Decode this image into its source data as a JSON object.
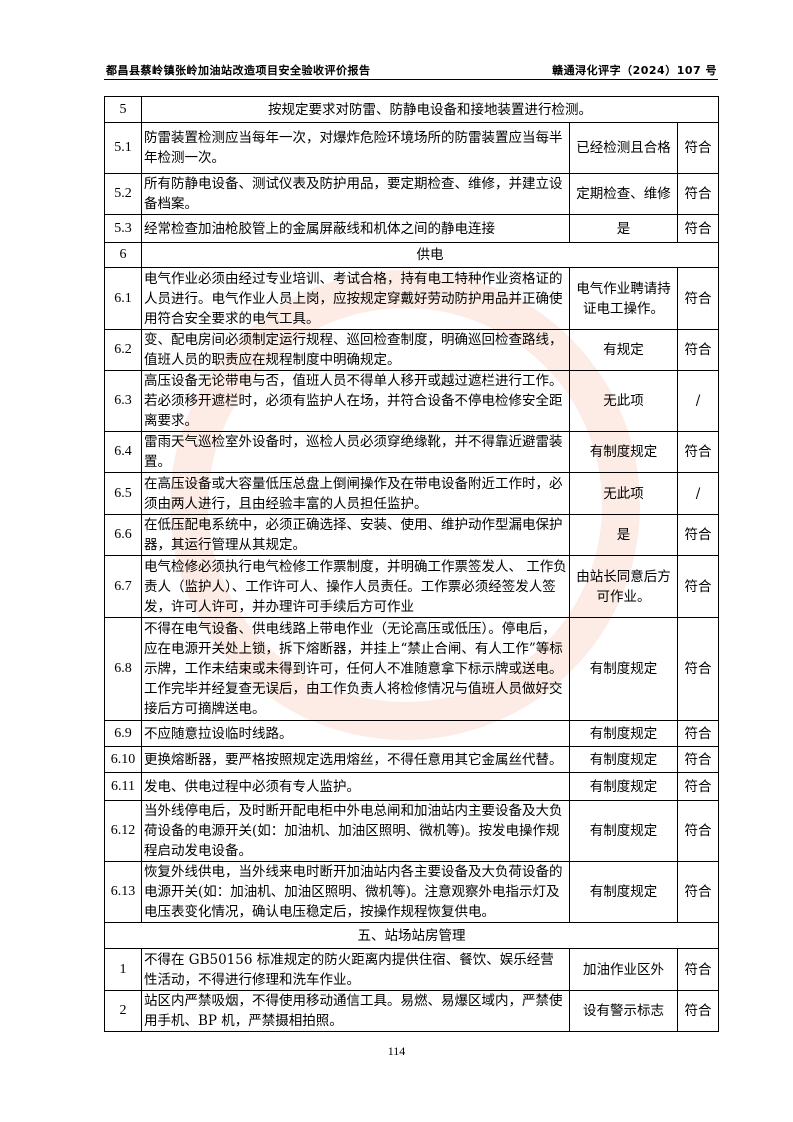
{
  "header": {
    "left": "都昌县蔡岭镇张岭加油站改造项目安全验收评价报告",
    "right": "赣通浔化评字（2024）107 号"
  },
  "rows": [
    {
      "type": "section",
      "num": "5",
      "text": "按规定要求对防雷、防静电设备和接地装置进行检测。"
    },
    {
      "num": "5.1",
      "content": "防雷装置检测应当每年一次，对爆炸危险环境场所的防雷装置应当每半年检测一次。",
      "result": "已经检测且合格",
      "conclusion": "符合"
    },
    {
      "num": "5.2",
      "content": "所有防静电设备、测试仪表及防护用品，要定期检查、维修，并建立设备档案。",
      "result": "定期检查、维修",
      "conclusion": "符合"
    },
    {
      "num": "5.3",
      "content": "经常检查加油枪胶管上的金属屏蔽线和机体之间的静电连接",
      "result": "是",
      "conclusion": "符合"
    },
    {
      "type": "section",
      "num": "6",
      "text": "供电"
    },
    {
      "num": "6.1",
      "content": "电气作业必须由经过专业培训、考试合格，持有电工特种作业资格证的人员进行。电气作业人员上岗，应按规定穿戴好劳动防护用品并正确使用符合安全要求的电气工具。",
      "result": "电气作业聘请持证电工操作。",
      "conclusion": "符合"
    },
    {
      "num": "6.2",
      "content": "变、配电房间必须制定运行规程、巡回检查制度，明确巡回检查路线，值班人员的职责应在规程制度中明确规定。",
      "result": "有规定",
      "conclusion": "符合"
    },
    {
      "num": "6.3",
      "content": "高压设备无论带电与否，值班人员不得单人移开或越过遮栏进行工作。若必须移开遮栏时，必须有监护人在场，并符合设备不停电检修安全距离要求。",
      "result": "无此项",
      "conclusion": "/"
    },
    {
      "num": "6.4",
      "content": "雷雨天气巡检室外设备时，巡检人员必须穿绝缘靴，并不得靠近避雷装置。",
      "result": "有制度规定",
      "conclusion": "符合"
    },
    {
      "num": "6.5",
      "content": "在高压设备或大容量低压总盘上倒闸操作及在带电设备附近工作时，必须由两人进行，且由经验丰富的人员担任监护。",
      "result": "无此项",
      "conclusion": "/"
    },
    {
      "num": "6.6",
      "content": "在低压配电系统中，必须正确选择、安装、使用、维护动作型漏电保护器，其运行管理从其规定。",
      "result": "是",
      "conclusion": "符合"
    },
    {
      "num": "6.7",
      "content": "电气检修必须执行电气检修工作票制度，并明确工作票签发人、 工作负责人（监护人）、工作许可人、操作人员责任。工作票必须经签发人签发，许可人许可，并办理许可手续后方可作业",
      "result": "由站长同意后方可作业。",
      "conclusion": "符合"
    },
    {
      "num": "6.8",
      "content": "不得在电气设备、供电线路上带电作业（无论高压或低压）。停电后，应在电源开关处上锁，拆下熔断器，并挂上“禁止合闸、有人工作”等标示牌，工作未结束或未得到许可，任何人不准随意拿下标示牌或送电。工作完毕并经复查无误后，由工作负责人将检修情况与值班人员做好交接后方可摘牌送电。",
      "result": "有制度规定",
      "conclusion": "符合"
    },
    {
      "num": "6.9",
      "content": "不应随意拉设临时线路。",
      "result": "有制度规定",
      "conclusion": "符合"
    },
    {
      "num": "6.10",
      "content": "更换熔断器，要严格按照规定选用熔丝，不得任意用其它金属丝代替。",
      "result": "有制度规定",
      "conclusion": "符合"
    },
    {
      "num": "6.11",
      "content": "发电、供电过程中必须有专人监护。",
      "result": "有制度规定",
      "conclusion": "符合"
    },
    {
      "num": "6.12",
      "content": "当外线停电后，及时断开配电柜中外电总闸和加油站内主要设备及大负荷设备的电源开关(如：加油机、加油区照明、微机等)。按发电操作规程启动发电设备。",
      "result": "有制度规定",
      "conclusion": "符合"
    },
    {
      "num": "6.13",
      "content": "恢复外线供电，当外线来电时断开加油站内各主要设备及大负荷设备的电源开关(如：加油机、加油区照明、微机等)。注意观察外电指示灯及电压表变化情况，确认电压稳定后，按操作规程恢复供电。",
      "result": "有制度规定",
      "conclusion": "符合"
    },
    {
      "type": "chapter",
      "text": "五、站场站房管理"
    },
    {
      "num": "1",
      "content": "不得在 GB50156 标准规定的防火距离内提供住宿、餐饮、娱乐经营性活动，不得进行修理和洗车作业。",
      "result": "加油作业区外",
      "conclusion": "符合"
    },
    {
      "num": "2",
      "content": "站区内严禁吸烟，不得使用移动通信工具。易燃、易爆区域内，严禁使用手机、BP 机，严禁摄相拍照。",
      "result": "设有警示标志",
      "conclusion": "符合"
    }
  ],
  "page_number": "114"
}
